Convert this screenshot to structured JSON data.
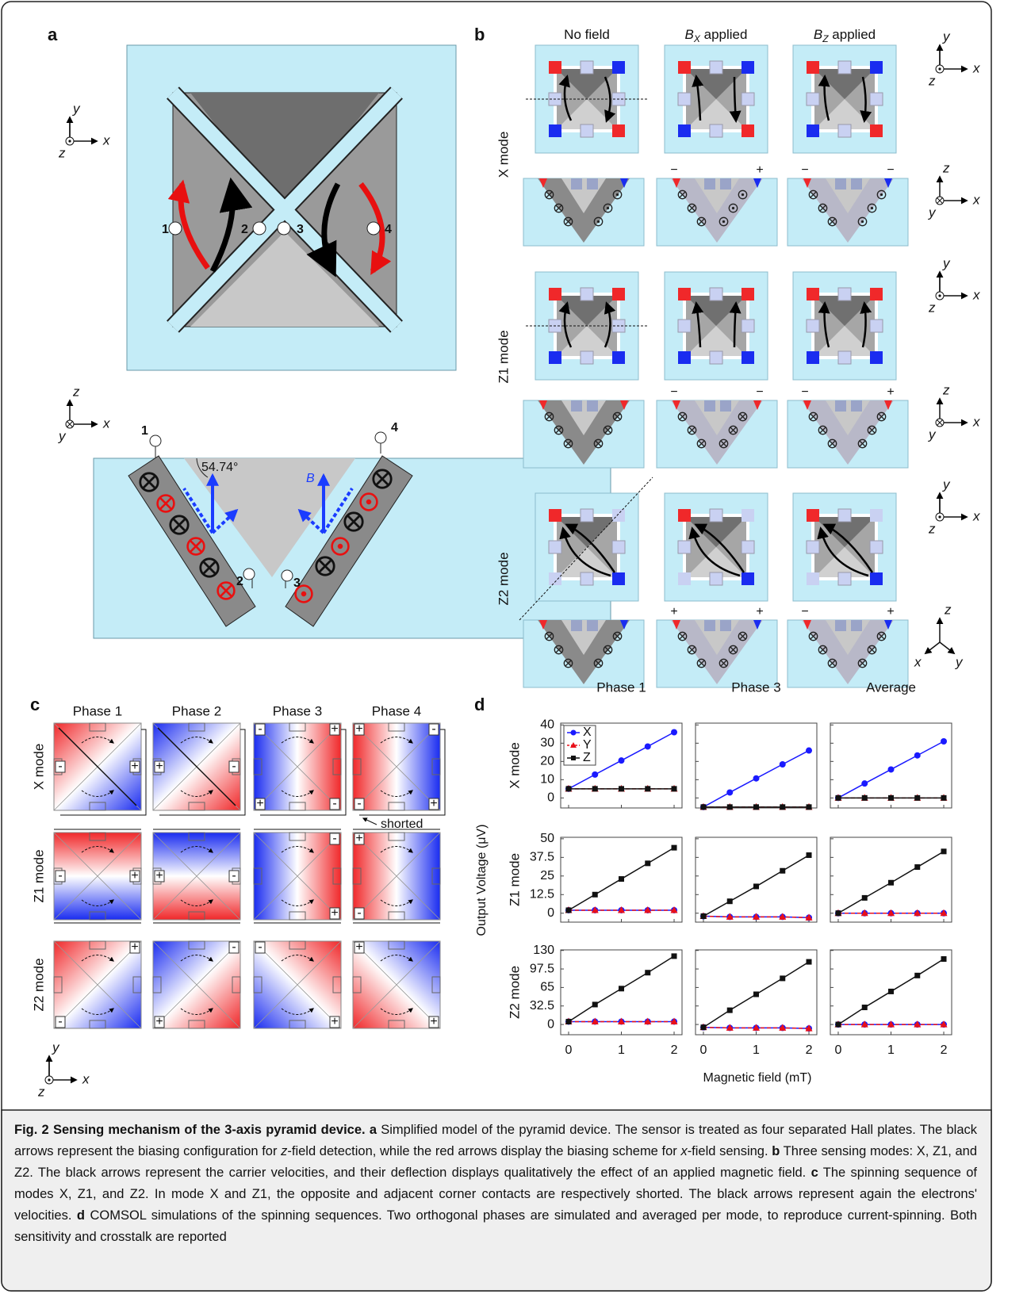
{
  "axis_labels": {
    "x": "x",
    "y": "y",
    "z": "z"
  },
  "panel_a": {
    "label": "a",
    "contacts": [
      "1",
      "2",
      "3",
      "4"
    ],
    "angle": "54.74°",
    "field": "B"
  },
  "panel_b": {
    "label": "b",
    "columns": [
      {
        "text": "No field"
      },
      {
        "symbol": "B",
        "sub": "X",
        "text": " applied"
      },
      {
        "symbol": "B",
        "sub": "Z",
        "text": " applied"
      }
    ],
    "rows": [
      {
        "label": "X mode",
        "signs": [
          [],
          [
            "−",
            "+"
          ],
          [
            "−",
            "−"
          ]
        ]
      },
      {
        "label": "Z1 mode",
        "signs": [
          [],
          [
            "−",
            "−"
          ],
          [
            "−",
            "+"
          ]
        ]
      },
      {
        "label": "Z2 mode",
        "signs": [
          [],
          [
            "+",
            "+"
          ],
          [
            "−",
            "+"
          ]
        ]
      }
    ]
  },
  "panel_c": {
    "label": "c",
    "phases": [
      "Phase 1",
      "Phase 2",
      "Phase 3",
      "Phase 4"
    ],
    "rows": [
      {
        "label": "X mode",
        "signs": [
          [
            "-",
            "+"
          ],
          [
            "+",
            "-"
          ],
          [
            "-",
            "+",
            "+",
            "-"
          ],
          [
            "+",
            "-",
            "-",
            "+"
          ]
        ]
      },
      {
        "label": "Z1 mode",
        "signs": [
          [
            "-",
            "+"
          ],
          [
            "+",
            "-"
          ],
          [
            "-",
            "+"
          ],
          [
            "+",
            "-"
          ]
        ]
      },
      {
        "label": "Z2 mode",
        "signs": [
          [
            "-",
            "+"
          ],
          [
            "+",
            "-"
          ],
          [
            "-",
            "+"
          ],
          [
            "+",
            "+"
          ]
        ]
      }
    ],
    "note": "shorted"
  },
  "chart_data": {
    "type": "line",
    "label": "d",
    "ylabel": "Output Voltage (μV)",
    "xlabel": "Magnetic field (mT)",
    "columns": [
      "Phase 1",
      "Phase 3",
      "Average"
    ],
    "x": [
      0,
      0.5,
      1,
      1.5,
      2
    ],
    "xlim": [
      -0.15,
      2.15
    ],
    "xticks": [
      0,
      1,
      2
    ],
    "grid": false,
    "legend": "upper left",
    "series": [
      {
        "name": "X",
        "color": "#1a1aff",
        "marker": "circle",
        "dash": "solid"
      },
      {
        "name": "Y",
        "color": "#e8101a",
        "marker": "triangle",
        "dash": "dashed"
      },
      {
        "name": "Z",
        "color": "#111111",
        "marker": "square",
        "dash": "solid"
      }
    ],
    "rows": [
      {
        "label": "X mode",
        "ylim": [
          -5.5,
          41
        ],
        "yticks": [
          0,
          10,
          20,
          30,
          40
        ],
        "panels": [
          {
            "values": [
              [
                5,
                12.8,
                20.5,
                28.2,
                36
              ],
              [
                5,
                5,
                5,
                5,
                5
              ],
              [
                5,
                5,
                5,
                5,
                5
              ]
            ]
          },
          {
            "values": [
              [
                -5,
                3,
                10.7,
                18.4,
                26
              ],
              [
                -5,
                -5,
                -5,
                -5,
                -5
              ],
              [
                -5,
                -5,
                -5,
                -5,
                -5
              ]
            ]
          },
          {
            "values": [
              [
                0,
                7.9,
                15.6,
                23.3,
                31
              ],
              [
                0,
                0,
                0,
                0,
                0
              ],
              [
                0,
                0,
                0,
                0,
                0
              ]
            ]
          }
        ]
      },
      {
        "label": "Z1 mode",
        "ylim": [
          -6,
          51
        ],
        "yticks": [
          0,
          12.5,
          25,
          37.5,
          50
        ],
        "panels": [
          {
            "values": [
              [
                2,
                2,
                2,
                2,
                2
              ],
              [
                2,
                2,
                2,
                2,
                2
              ],
              [
                2,
                12.5,
                23,
                33.5,
                44
              ]
            ]
          },
          {
            "values": [
              [
                -2,
                -2.5,
                -2.5,
                -2.5,
                -3
              ],
              [
                -2,
                -2.5,
                -2.5,
                -2.5,
                -3
              ],
              [
                -2,
                8,
                18,
                28.5,
                39
              ]
            ]
          },
          {
            "values": [
              [
                0,
                0,
                0,
                0,
                0
              ],
              [
                0,
                0,
                0,
                0,
                0
              ],
              [
                0,
                10.3,
                20.5,
                31,
                41.5
              ]
            ]
          }
        ]
      },
      {
        "label": "Z2 mode",
        "ylim": [
          -18,
          131
        ],
        "yticks": [
          0,
          32.5,
          65,
          97.5,
          130
        ],
        "panels": [
          {
            "values": [
              [
                5,
                5,
                5,
                5,
                5
              ],
              [
                5,
                5,
                5,
                5,
                5
              ],
              [
                5,
                35,
                63,
                91,
                120
              ]
            ]
          },
          {
            "values": [
              [
                -5,
                -6,
                -6,
                -6,
                -7
              ],
              [
                -5,
                -6,
                -6,
                -6,
                -7
              ],
              [
                -5,
                25,
                53,
                81,
                110
              ]
            ]
          },
          {
            "values": [
              [
                0,
                0,
                0,
                0,
                0
              ],
              [
                0,
                0,
                0,
                0,
                0
              ],
              [
                0,
                30,
                58,
                86,
                115
              ]
            ]
          }
        ]
      }
    ]
  },
  "caption": {
    "segments": [
      {
        "text": "Fig. 2 Sensing mechanism of the 3-axis pyramid device.",
        "style": "bold"
      },
      {
        "text": " a",
        "style": "bold"
      },
      {
        "text": " Simplified model of the pyramid device. The sensor is treated as four separated Hall plates. The black arrows represent the biasing configuration for ",
        "style": "normal"
      },
      {
        "text": "z",
        "style": "italic"
      },
      {
        "text": "-field detection, while the red arrows display the biasing scheme for ",
        "style": "normal"
      },
      {
        "text": "x",
        "style": "italic"
      },
      {
        "text": "-field sensing. ",
        "style": "normal"
      },
      {
        "text": "b",
        "style": "bold"
      },
      {
        "text": " Three sensing modes: X, Z1, and Z2. The black arrows represent the carrier velocities, and their deflection displays qualitatively the effect of an applied magnetic field. ",
        "style": "normal"
      },
      {
        "text": "c",
        "style": "bold"
      },
      {
        "text": " The spinning sequence of modes X, Z1, and Z2. In mode X and Z1, the opposite and adjacent corner contacts are respectively shorted. The black arrows represent again the electrons' velocities. ",
        "style": "normal"
      },
      {
        "text": "d",
        "style": "bold"
      },
      {
        "text": " COMSOL simulations of the spinning sequences. Two orthogonal phases are simulated and averaged per mode, to reproduce current-spinning. Both sensitivity and crosstalk are reported",
        "style": "normal"
      }
    ]
  }
}
